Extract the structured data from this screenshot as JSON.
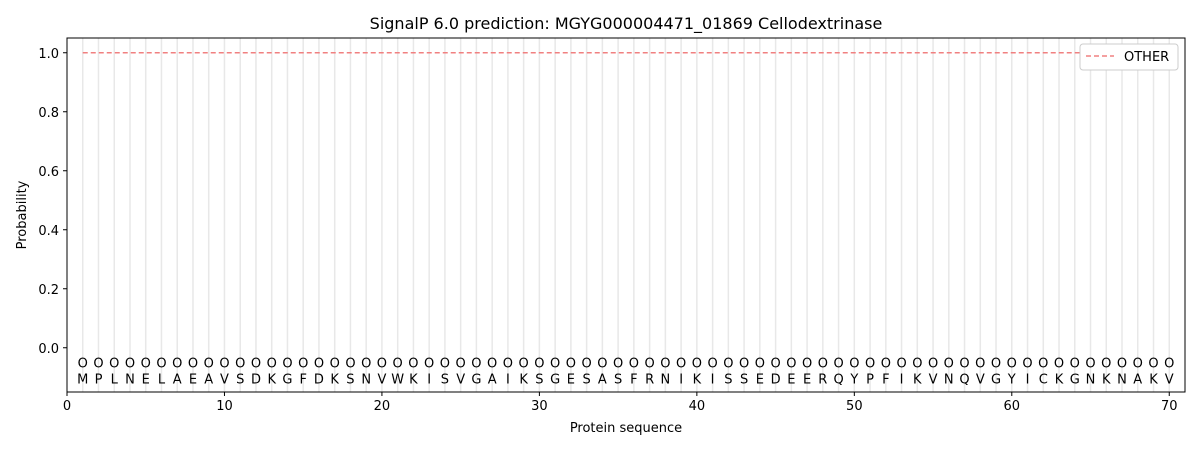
{
  "chart_data": {
    "type": "line",
    "title": "SignalP 6.0 prediction: MGYG000004471_01869 Cellodextrinase",
    "xlabel": "Protein sequence",
    "ylabel": "Probability",
    "xlim": [
      0,
      71
    ],
    "ylim": [
      -0.15,
      1.05
    ],
    "xticks": [
      0,
      10,
      20,
      30,
      40,
      50,
      60,
      70
    ],
    "yticks": [
      0.0,
      0.2,
      0.4,
      0.6,
      0.8,
      1.0
    ],
    "ytick_labels": [
      "0.0",
      "0.2",
      "0.4",
      "0.6",
      "0.8",
      "1.0"
    ],
    "sequence": [
      "M",
      "P",
      "L",
      "N",
      "E",
      "L",
      "A",
      "E",
      "A",
      "V",
      "S",
      "D",
      "K",
      "G",
      "F",
      "D",
      "K",
      "S",
      "N",
      "V",
      "W",
      "K",
      "I",
      "S",
      "V",
      "G",
      "A",
      "I",
      "K",
      "S",
      "G",
      "E",
      "S",
      "A",
      "S",
      "F",
      "R",
      "N",
      "I",
      "K",
      "I",
      "S",
      "S",
      "E",
      "D",
      "E",
      "E",
      "R",
      "Q",
      "Y",
      "P",
      "F",
      "I",
      "K",
      "V",
      "N",
      "Q",
      "V",
      "G",
      "Y",
      "I",
      "C",
      "K",
      "G",
      "N",
      "K",
      "N",
      "A",
      "K",
      "V"
    ],
    "predicted_label": "O",
    "series": [
      {
        "name": "OTHER",
        "color": "#f08080",
        "style": "dashed",
        "x_range": [
          1,
          70
        ],
        "value": 1.0
      }
    ],
    "legend": "top-right",
    "grid": "vertical lines at each residue"
  }
}
